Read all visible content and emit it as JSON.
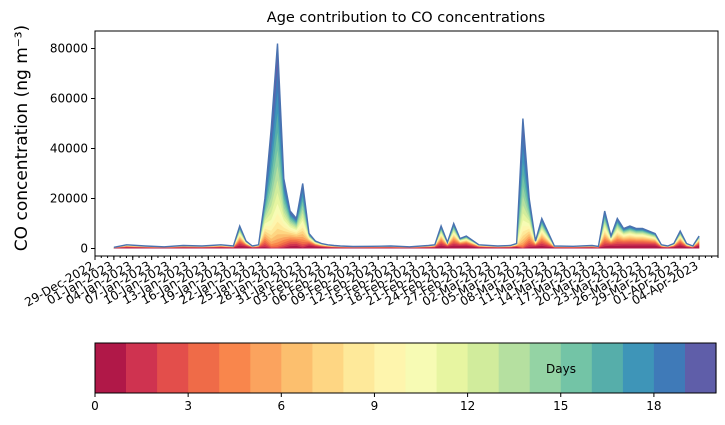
{
  "chart_data": [
    {
      "type": "area",
      "stacked": true,
      "title": "Age contribution to CO concentrations",
      "xlabel": "",
      "ylabel": "CO concentration (ng m⁻³)",
      "ylim": [
        -3000,
        87000
      ],
      "yticks": [
        0,
        20000,
        40000,
        60000,
        80000
      ],
      "xlim": [
        "2022-12-29",
        "2023-04-07"
      ],
      "x_tick_labels": [
        "29-Dec-2022",
        "01-Jan-2023",
        "04-Jan-2023",
        "07-Jan-2023",
        "10-Jan-2023",
        "13-Jan-2023",
        "16-Jan-2023",
        "19-Jan-2023",
        "22-Jan-2023",
        "25-Jan-2023",
        "28-Jan-2023",
        "31-Jan-2023",
        "03-Feb-2023",
        "06-Feb-2023",
        "09-Feb-2023",
        "12-Feb-2023",
        "15-Feb-2023",
        "18-Feb-2023",
        "21-Feb-2023",
        "24-Feb-2023",
        "27-Feb-2023",
        "02-Mar-2023",
        "05-Mar-2023",
        "08-Mar-2023",
        "11-Mar-2023",
        "14-Mar-2023",
        "17-Mar-2023",
        "20-Mar-2023",
        "23-Mar-2023",
        "26-Mar-2023",
        "29-Mar-2023",
        "01-Apr-2023",
        "04-Apr-2023"
      ],
      "total_series": {
        "x": [
          "2023-01-01",
          "2023-01-03",
          "2023-01-06",
          "2023-01-09",
          "2023-01-12",
          "2023-01-15",
          "2023-01-18",
          "2023-01-20",
          "2023-01-21",
          "2023-01-22",
          "2023-01-23",
          "2023-01-24",
          "2023-01-25",
          "2023-01-26",
          "2023-01-27",
          "2023-01-28",
          "2023-01-29",
          "2023-01-30",
          "2023-01-31",
          "2023-02-01",
          "2023-02-02",
          "2023-02-03",
          "2023-02-04",
          "2023-02-05",
          "2023-02-06",
          "2023-02-08",
          "2023-02-11",
          "2023-02-14",
          "2023-02-17",
          "2023-02-20",
          "2023-02-21",
          "2023-02-22",
          "2023-02-23",
          "2023-02-24",
          "2023-02-25",
          "2023-02-26",
          "2023-02-28",
          "2023-03-03",
          "2023-03-05",
          "2023-03-06",
          "2023-03-07",
          "2023-03-08",
          "2023-03-09",
          "2023-03-10",
          "2023-03-12",
          "2023-03-15",
          "2023-03-18",
          "2023-03-19",
          "2023-03-20",
          "2023-03-21",
          "2023-03-22",
          "2023-03-23",
          "2023-03-24",
          "2023-03-25",
          "2023-03-26",
          "2023-03-27",
          "2023-03-28",
          "2023-03-29",
          "2023-03-30",
          "2023-03-31",
          "2023-04-01",
          "2023-04-02",
          "2023-04-03",
          "2023-04-04"
        ],
        "values": [
          500,
          1500,
          1000,
          700,
          1200,
          1000,
          1500,
          1000,
          9000,
          3000,
          1000,
          1500,
          20000,
          48000,
          82000,
          28000,
          15000,
          12000,
          26000,
          6000,
          3000,
          2000,
          1500,
          1200,
          1000,
          800,
          900,
          1000,
          700,
          1200,
          1500,
          9000,
          2500,
          10000,
          4000,
          5000,
          1500,
          1000,
          1200,
          2000,
          52000,
          20000,
          3000,
          12000,
          1000,
          900,
          1200,
          800,
          15000,
          5000,
          12000,
          8000,
          9000,
          8000,
          8000,
          7000,
          6000,
          1500,
          1000,
          2000,
          7000,
          2000,
          1000,
          5000
        ]
      },
      "colorbar": {
        "label": "Days",
        "ticks": [
          0,
          3,
          6,
          9,
          12,
          15,
          18
        ],
        "range": [
          0,
          20
        ],
        "colors": [
          "#b01848",
          "#cf3350",
          "#e34e4b",
          "#ef6b48",
          "#f9864c",
          "#fba35e",
          "#fcbf6e",
          "#fed683",
          "#fee99a",
          "#fef5ad",
          "#f7fbb4",
          "#e7f5a1",
          "#d1ec9c",
          "#b5e0a0",
          "#94d3a4",
          "#73c4a6",
          "#56aeaa",
          "#3e95b8",
          "#3f7ab8",
          "#5f5ea9"
        ]
      }
    }
  ]
}
